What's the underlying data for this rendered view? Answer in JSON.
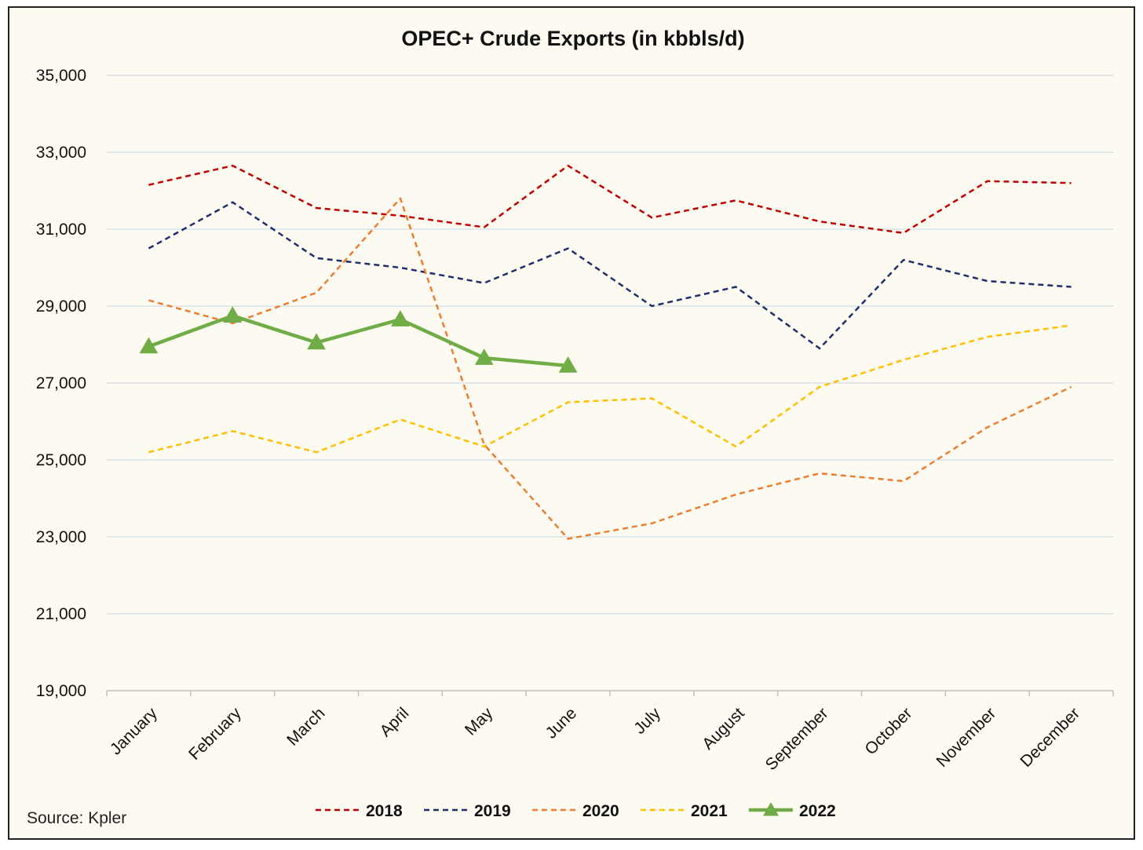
{
  "chart_data": {
    "type": "line",
    "title": "OPEC+ Crude Exports (in kbbls/d)",
    "xlabel": "",
    "ylabel": "",
    "ylim": [
      19000,
      35000
    ],
    "yticks": [
      "19,000",
      "21,000",
      "23,000",
      "25,000",
      "27,000",
      "29,000",
      "31,000",
      "33,000",
      "35,000"
    ],
    "ytick_values": [
      19000,
      21000,
      23000,
      25000,
      27000,
      29000,
      31000,
      33000,
      35000
    ],
    "categories": [
      "January",
      "February",
      "March",
      "April",
      "May",
      "June",
      "July",
      "August",
      "September",
      "October",
      "November",
      "December"
    ],
    "grid": "horizontal",
    "legend_position": "bottom",
    "series": [
      {
        "name": "2018",
        "color": "#c00000",
        "style": "dashed",
        "values": [
          32150,
          32650,
          31550,
          31350,
          31050,
          32650,
          31300,
          31750,
          31200,
          30900,
          32250,
          32200
        ]
      },
      {
        "name": "2019",
        "color": "#1f2f6b",
        "style": "dashed",
        "values": [
          30500,
          31700,
          30250,
          30000,
          29600,
          30500,
          29000,
          29500,
          27900,
          30200,
          29650,
          29500
        ]
      },
      {
        "name": "2020",
        "color": "#ed7d31",
        "style": "dashed",
        "values": [
          29150,
          28550,
          29350,
          31800,
          25400,
          22950,
          23350,
          24100,
          24650,
          24450,
          25850,
          26900
        ]
      },
      {
        "name": "2021",
        "color": "#ffc000",
        "style": "dashed",
        "values": [
          25200,
          25750,
          25200,
          26050,
          25350,
          26500,
          26600,
          25350,
          26900,
          27600,
          28200,
          28500
        ]
      },
      {
        "name": "2022",
        "color": "#70ad47",
        "style": "solid-triangle",
        "values": [
          27950,
          28750,
          28050,
          28650,
          27650,
          27450,
          null,
          null,
          null,
          null,
          null,
          null
        ]
      }
    ]
  },
  "source_text": "Source: Kpler"
}
